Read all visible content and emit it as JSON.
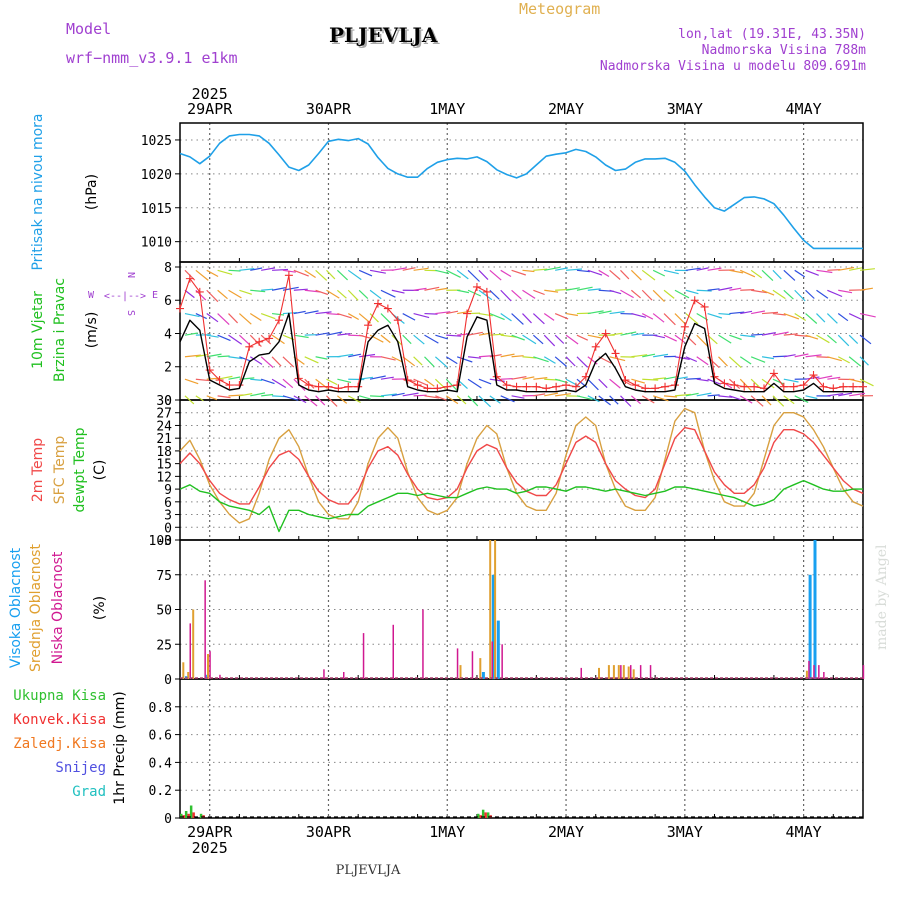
{
  "header": {
    "model_label": "Model",
    "model_name": "wrf−nmm_v3.9.1  e1km",
    "title": "PLJEVLJA",
    "meteogram": "Meteogram",
    "lonlat": "lon,lat (19.31E, 43.35N)",
    "altitude": "Nadmorska Visina 788m",
    "model_altitude": "Nadmorska Visina u modelu 809.691m",
    "footer": "PLJEVLJA",
    "watermark": "made by Angel"
  },
  "colors": {
    "pressure": "#1fa0e8",
    "temp2m": "#f04848",
    "sfc": "#d8a040",
    "dewpt": "#20c020",
    "high_cloud": "#18a0f0",
    "mid_cloud": "#e0a030",
    "low_cloud": "#d01890",
    "total_precip": "#30c030",
    "conv_precip": "#f03030",
    "frz_precip": "#f07820",
    "snow": "#5050e0",
    "hail": "#20c0c0",
    "wind_speed": "#000000",
    "gust": "#f03030",
    "purple_text": "#a040d0",
    "title_sun": "#e0b050"
  },
  "time_axis": {
    "top_labels": [
      "29APR",
      "30APR",
      "1MAY",
      "2MAY",
      "3MAY",
      "4MAY"
    ],
    "bottom_labels": [
      "29APR",
      "30APR",
      "1MAY",
      "2MAY",
      "3MAY",
      "4MAY"
    ],
    "year": "2025",
    "hours_start": -6,
    "hours_end": 132
  },
  "panels": {
    "pressure": {
      "ylabel1": "Pritisak na nivou mora",
      "ylabel2": "(hPa)"
    },
    "wind": {
      "ylabel1": "10m Vjetar",
      "ylabel2": "Brzina i Pravac",
      "ylabel3": "(m/s)",
      "compass_n": "N",
      "compass_s": "S",
      "compass_e": "E",
      "compass_w": "W"
    },
    "temperature": {
      "label_2m": "2m Temp",
      "label_sfc": "SFC Temp",
      "label_dew": "dewpt Temp",
      "unit": "(C)"
    },
    "cloud": {
      "label_high": "Visoka Oblacnost",
      "label_mid": "Srednja Oblacnost",
      "label_low": "Niska Oblacnost",
      "unit": "(%)"
    },
    "precip": {
      "ylabel": "1hr Precip (mm)",
      "legend": [
        "Ukupna Kisa",
        "Konvek.Kisa",
        "Zaledj.Kisa",
        "Snijeg",
        "Grad"
      ]
    }
  },
  "chart_data": [
    {
      "type": "line",
      "title": "Pritisak na nivou mora",
      "ylabel": "(hPa)",
      "ylim": [
        1007,
        1027.5
      ],
      "yticks": [
        1010,
        1015,
        1020,
        1025
      ],
      "x_hours": [
        -6,
        -4,
        -2,
        0,
        2,
        4,
        6,
        8,
        10,
        12,
        14,
        16,
        18,
        20,
        22,
        24,
        26,
        28,
        30,
        32,
        34,
        36,
        38,
        40,
        42,
        44,
        46,
        48,
        50,
        52,
        54,
        56,
        58,
        60,
        62,
        64,
        66,
        68,
        70,
        72,
        74,
        76,
        78,
        80,
        82,
        84,
        86,
        88,
        90,
        92,
        94,
        96,
        98,
        100,
        102,
        104,
        106,
        108,
        110,
        112,
        114,
        116,
        118,
        120,
        122,
        124,
        126,
        128,
        130,
        132
      ],
      "series": [
        {
          "values": [
            1023.0,
            1022.5,
            1021.5,
            1022.6,
            1024.5,
            1025.6,
            1025.8,
            1025.8,
            1025.6,
            1024.5,
            1022.8,
            1021.0,
            1020.5,
            1021.3,
            1023.0,
            1024.8,
            1025.1,
            1024.9,
            1025.2,
            1024.4,
            1022.4,
            1020.8,
            1020.0,
            1019.5,
            1019.5,
            1020.8,
            1021.7,
            1022.1,
            1022.3,
            1022.2,
            1022.5,
            1021.8,
            1020.6,
            1019.9,
            1019.4,
            1020.0,
            1021.3,
            1022.6,
            1022.9,
            1023.1,
            1023.6,
            1023.3,
            1022.5,
            1021.3,
            1020.5,
            1020.7,
            1021.7,
            1022.2,
            1022.2,
            1022.3,
            1021.7,
            1020.4,
            1018.4,
            1016.6,
            1015.0,
            1014.5,
            1015.5,
            1016.5,
            1016.6,
            1016.3,
            1015.6,
            1013.9,
            1012.0,
            1010.2,
            1009.0,
            1009.0,
            1009.0,
            1009.0,
            1009.0,
            1009.0
          ]
        }
      ]
    },
    {
      "type": "line",
      "title": "10m Vjetar Brzina i Pravac",
      "ylabel": "(m/s)",
      "ylim": [
        0,
        8.3
      ],
      "yticks": [
        0,
        2,
        4,
        6,
        8
      ],
      "x_hours": [
        -6,
        -4,
        -2,
        0,
        2,
        4,
        6,
        8,
        10,
        12,
        14,
        16,
        18,
        20,
        22,
        24,
        26,
        28,
        30,
        32,
        34,
        36,
        38,
        40,
        42,
        44,
        46,
        48,
        50,
        52,
        54,
        56,
        58,
        60,
        62,
        64,
        66,
        68,
        70,
        72,
        74,
        76,
        78,
        80,
        82,
        84,
        86,
        88,
        90,
        92,
        94,
        96,
        98,
        100,
        102,
        104,
        106,
        108,
        110,
        112,
        114,
        116,
        118,
        120,
        122,
        124,
        126,
        128,
        130,
        132
      ],
      "series": [
        {
          "values": [
            3.5,
            4.8,
            4.2,
            1.2,
            0.9,
            0.6,
            0.7,
            2.3,
            2.7,
            2.8,
            3.5,
            5.2,
            0.9,
            0.6,
            0.5,
            0.6,
            0.5,
            0.5,
            0.5,
            3.5,
            4.2,
            4.5,
            3.5,
            0.8,
            0.6,
            0.5,
            0.5,
            0.6,
            0.5,
            3.8,
            5.0,
            4.8,
            0.9,
            0.6,
            0.6,
            0.5,
            0.5,
            0.5,
            0.5,
            0.6,
            0.5,
            0.9,
            2.3,
            2.8,
            1.9,
            0.8,
            0.6,
            0.5,
            0.5,
            0.5,
            0.6,
            3.2,
            4.6,
            4.3,
            1.0,
            0.7,
            0.6,
            0.5,
            0.5,
            0.5,
            1.0,
            0.5,
            0.5,
            0.6,
            1.0,
            0.5,
            0.5,
            0.5,
            0.5,
            0.5
          ]
        },
        {
          "values": [
            5.5,
            7.3,
            6.5,
            1.8,
            1.2,
            0.9,
            0.9,
            3.2,
            3.5,
            3.7,
            4.8,
            7.5,
            1.3,
            0.9,
            0.8,
            0.8,
            0.7,
            0.8,
            0.8,
            4.5,
            5.8,
            5.5,
            4.8,
            1.2,
            0.9,
            0.7,
            0.7,
            0.8,
            0.9,
            5.2,
            6.8,
            6.5,
            1.4,
            0.9,
            0.8,
            0.8,
            0.8,
            0.7,
            0.8,
            0.9,
            0.8,
            1.4,
            3.2,
            4.0,
            2.8,
            1.2,
            0.9,
            0.7,
            0.7,
            0.8,
            0.9,
            4.4,
            6.0,
            5.6,
            1.4,
            1.0,
            0.9,
            0.8,
            0.8,
            0.7,
            1.6,
            0.8,
            0.8,
            0.9,
            1.5,
            0.8,
            0.7,
            0.8,
            0.8,
            0.8
          ]
        }
      ]
    },
    {
      "type": "line",
      "title": "2m Temp / SFC Temp / dewpt Temp",
      "ylabel": "(C)",
      "ylim": [
        -3,
        30
      ],
      "yticks": [
        -3,
        0,
        3,
        6,
        9,
        12,
        15,
        18,
        21,
        24,
        27,
        30
      ],
      "x_hours": [
        -6,
        -4,
        -2,
        0,
        2,
        4,
        6,
        8,
        10,
        12,
        14,
        16,
        18,
        20,
        22,
        24,
        26,
        28,
        30,
        32,
        34,
        36,
        38,
        40,
        42,
        44,
        46,
        48,
        50,
        52,
        54,
        56,
        58,
        60,
        62,
        64,
        66,
        68,
        70,
        72,
        74,
        76,
        78,
        80,
        82,
        84,
        86,
        88,
        90,
        92,
        94,
        96,
        98,
        100,
        102,
        104,
        106,
        108,
        110,
        112,
        114,
        116,
        118,
        120,
        122,
        124,
        126,
        128,
        130,
        132
      ],
      "series": [
        {
          "name": "2m Temp",
          "values": [
            15,
            17.5,
            15,
            11,
            8,
            6.5,
            5.5,
            5.5,
            9.5,
            14,
            17,
            18,
            16,
            12,
            8.5,
            6.5,
            5.5,
            5.5,
            8.5,
            14,
            18,
            19,
            17,
            12.5,
            9,
            7,
            6.5,
            7,
            9,
            14,
            18,
            19.5,
            18.5,
            14,
            10.5,
            8.5,
            7.5,
            7.5,
            10,
            15,
            20,
            21.5,
            20,
            15,
            11,
            9,
            7.5,
            7,
            9,
            15,
            21,
            23.5,
            23,
            18,
            13,
            10,
            8,
            8,
            10,
            14,
            20,
            23,
            23,
            22,
            20,
            17,
            14,
            11,
            9,
            8
          ]
        },
        {
          "name": "SFC Temp",
          "values": [
            18,
            20.5,
            16,
            10,
            6,
            3,
            1,
            2,
            8,
            16,
            21,
            23,
            19,
            12,
            6,
            3,
            2,
            2,
            6,
            15,
            21,
            23.5,
            21,
            13,
            7,
            4,
            3,
            4,
            7,
            15,
            21,
            24,
            22,
            14,
            8,
            5,
            4,
            4,
            8,
            17,
            24,
            26,
            24,
            15,
            9,
            5,
            4,
            4,
            7,
            16,
            25,
            28,
            27,
            18,
            11,
            6,
            5,
            5,
            8,
            16,
            24,
            27,
            27,
            26,
            23,
            19,
            14,
            9,
            6,
            5
          ]
        },
        {
          "name": "dewpt Temp",
          "values": [
            9,
            10,
            8.5,
            8,
            6,
            5,
            4.5,
            4,
            3,
            5,
            -1,
            4,
            4,
            3,
            2.5,
            2,
            2.5,
            3,
            3,
            5,
            6,
            7,
            8,
            8,
            7.5,
            8,
            7.5,
            7,
            7,
            8,
            9,
            9.5,
            9,
            9,
            8,
            8.5,
            9.5,
            9.5,
            9,
            8.5,
            9.5,
            9.5,
            9,
            8.5,
            9,
            8.5,
            8,
            7.5,
            8,
            8.5,
            9.5,
            9.5,
            9,
            8.5,
            8,
            7.5,
            7,
            6,
            5,
            5.5,
            6.5,
            9,
            10,
            11,
            10,
            9,
            8.5,
            8.5,
            9,
            9
          ]
        }
      ]
    },
    {
      "type": "bar",
      "title": "Visoka / Srednja / Niska Oblacnost",
      "ylabel": "(%)",
      "ylim": [
        0,
        100
      ],
      "yticks": [
        0,
        25,
        50,
        75,
        100
      ],
      "series": [
        {
          "name": "Visoka Oblacnost",
          "x_hours": [
            -5,
            -1,
            55,
            57,
            58,
            121,
            122
          ],
          "values": [
            2,
            3,
            5,
            75,
            42,
            75,
            100
          ]
        },
        {
          "name": "Srednja Oblacnost",
          "x_hours": [
            -6,
            -5,
            -4,
            -1,
            50,
            54,
            56,
            57,
            78,
            80,
            81,
            82,
            83,
            84,
            85,
            120
          ],
          "values": [
            12,
            5,
            50,
            18,
            10,
            15,
            100,
            100,
            8,
            10,
            10,
            10,
            10,
            9,
            7,
            6
          ]
        },
        {
          "name": "Niska Oblacnost",
          "x_hours": [
            -5,
            -2,
            -1,
            1,
            22,
            26,
            30,
            36,
            42,
            49,
            52,
            56,
            58,
            74,
            82,
            84,
            86,
            88,
            120,
            121,
            122,
            123,
            131
          ],
          "values": [
            40,
            71,
            20,
            3,
            7,
            5,
            33,
            39,
            50,
            22,
            20,
            27,
            25,
            8,
            10,
            10,
            10,
            10,
            13,
            10,
            10,
            5,
            10
          ]
        }
      ]
    },
    {
      "type": "bar",
      "title": "1hr Precip",
      "ylabel": "(mm)",
      "ylim": [
        0,
        1.0
      ],
      "yticks": [
        0,
        0.2,
        0.4,
        0.6,
        0.8
      ],
      "series": [
        {
          "name": "Ukupna Kisa",
          "x_hours": [
            -6,
            -5,
            -4,
            -2,
            54,
            55,
            56
          ],
          "values": [
            0.03,
            0.05,
            0.09,
            0.03,
            0.03,
            0.06,
            0.04
          ]
        },
        {
          "name": "Konvek.Kisa",
          "x_hours": [
            -6,
            -5,
            -4,
            -2,
            54,
            55,
            56
          ],
          "values": [
            0.02,
            0.03,
            0.04,
            0.02,
            0.02,
            0.04,
            0.02
          ]
        }
      ]
    }
  ]
}
